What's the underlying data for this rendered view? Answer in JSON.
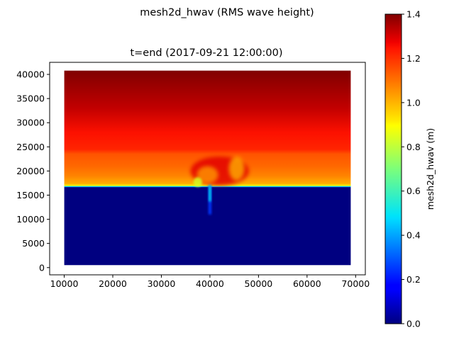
{
  "chart_data": {
    "type": "heatmap",
    "suptitle": "mesh2d_hwav (RMS wave height)",
    "title": "t=end (2017-09-21 12:00:00)",
    "xlabel": "",
    "ylabel": "",
    "xlim": [
      7000,
      72000
    ],
    "ylim": [
      -1500,
      42500
    ],
    "data_extent": {
      "x": [
        10000,
        69000
      ],
      "y": [
        500,
        40800
      ]
    },
    "xticks": [
      10000,
      20000,
      30000,
      40000,
      50000,
      60000,
      70000
    ],
    "xtick_labels": [
      "10000",
      "20000",
      "30000",
      "40000",
      "50000",
      "60000",
      "70000"
    ],
    "yticks": [
      0,
      5000,
      10000,
      15000,
      20000,
      25000,
      30000,
      35000,
      40000
    ],
    "ytick_labels": [
      "0",
      "5000",
      "10000",
      "15000",
      "20000",
      "25000",
      "30000",
      "35000",
      "40000"
    ],
    "colormap": "jet",
    "colorbar": {
      "label": "mesh2d_hwav (m)",
      "vmin": 0.0,
      "vmax": 1.4,
      "ticks": [
        0.0,
        0.2,
        0.4,
        0.6,
        0.8,
        1.0,
        1.2,
        1.4
      ],
      "tick_labels": [
        "0.0",
        "0.2",
        "0.4",
        "0.6",
        "0.8",
        "1.0",
        "1.2",
        "1.4"
      ]
    },
    "field": {
      "shoreline_y": 16800,
      "dry_value": 0.0,
      "value_profile_y": [
        16800,
        17500,
        19000,
        21000,
        23500,
        24500,
        28000,
        33000,
        40800
      ],
      "value_profile_v": [
        0.95,
        1.02,
        1.08,
        1.12,
        1.15,
        1.22,
        1.25,
        1.32,
        1.4
      ],
      "inlet_channel": {
        "x": 40000,
        "y_top": 17000,
        "y_bottom": 11000,
        "peak_value": 0.5
      },
      "ebb_delta": {
        "x_center": 42000,
        "y_center": 20000,
        "x_radius": 6000,
        "y_radius": 3000,
        "value": 1.28
      },
      "breaking_zone": {
        "x_from": 36000,
        "x_to": 49000,
        "value": 0.9
      }
    }
  },
  "colors": {
    "background": "#ffffff",
    "axes": "#000000"
  }
}
